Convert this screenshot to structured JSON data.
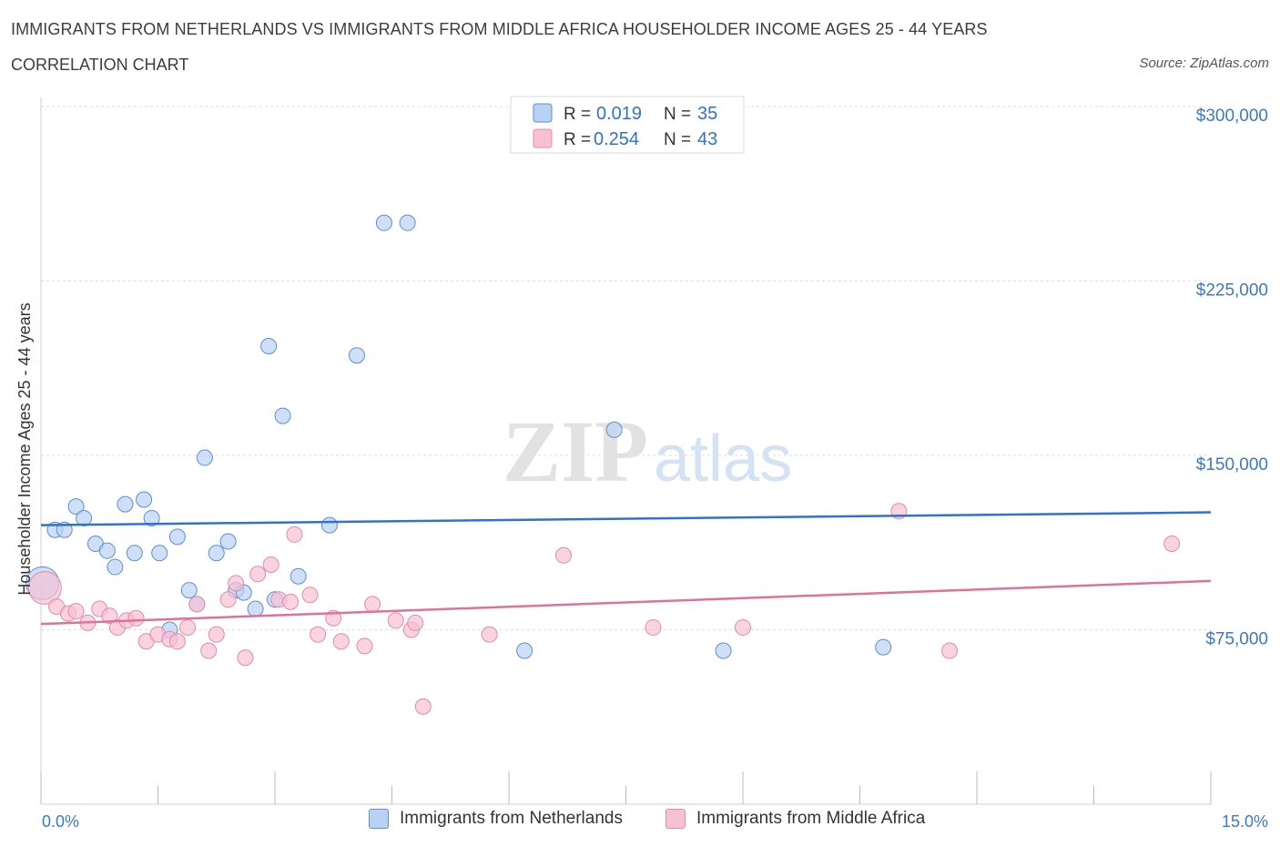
{
  "chart_data": {
    "type": "scatter",
    "title": "IMMIGRANTS FROM NETHERLANDS VS IMMIGRANTS FROM MIDDLE AFRICA HOUSEHOLDER INCOME AGES 25 - 44 YEARS",
    "subtitle": "CORRELATION CHART",
    "source": "Source: ZipAtlas.com",
    "ylabel": "Householder Income Ages 25 - 44 years",
    "xlabel": "",
    "xlim": [
      0,
      15
    ],
    "ylim": [
      0,
      300000
    ],
    "x_tick_labels": {
      "min": "0.0%",
      "max": "15.0%"
    },
    "y_ticks": [
      {
        "value": 75000,
        "label": "$75,000"
      },
      {
        "value": 150000,
        "label": "$150,000"
      },
      {
        "value": 225000,
        "label": "$225,000"
      },
      {
        "value": 300000,
        "label": "$300,000"
      }
    ],
    "watermark": {
      "part1": "ZIP",
      "part2": "atlas"
    },
    "legend": [
      {
        "r_label": "R =",
        "r_value": "0.019",
        "n_label": "N =",
        "n_value": "35"
      },
      {
        "r_label": "R =",
        "r_value": "0.254",
        "n_label": "N =",
        "n_value": "43"
      }
    ],
    "series": [
      {
        "name": "Immigrants from Netherlands",
        "color": "#5b8fd6",
        "fill": "#b9d2f3",
        "trend": {
          "x": [
            0,
            15
          ],
          "y": [
            120000,
            125500
          ],
          "color": "#2f72cf"
        },
        "points": [
          {
            "x": 0.02,
            "y": 95000,
            "big": true
          },
          {
            "x": 0.18,
            "y": 118000
          },
          {
            "x": 0.3,
            "y": 118000
          },
          {
            "x": 0.45,
            "y": 128000
          },
          {
            "x": 0.55,
            "y": 123000
          },
          {
            "x": 0.7,
            "y": 112000
          },
          {
            "x": 0.85,
            "y": 109000
          },
          {
            "x": 0.95,
            "y": 102000
          },
          {
            "x": 1.08,
            "y": 129000
          },
          {
            "x": 1.2,
            "y": 108000
          },
          {
            "x": 1.32,
            "y": 131000
          },
          {
            "x": 1.42,
            "y": 123000
          },
          {
            "x": 1.52,
            "y": 108000
          },
          {
            "x": 1.75,
            "y": 115000
          },
          {
            "x": 1.9,
            "y": 92000
          },
          {
            "x": 2.0,
            "y": 86000
          },
          {
            "x": 2.1,
            "y": 149000
          },
          {
            "x": 2.25,
            "y": 108000
          },
          {
            "x": 2.4,
            "y": 113000
          },
          {
            "x": 2.5,
            "y": 92000
          },
          {
            "x": 2.6,
            "y": 91000
          },
          {
            "x": 2.75,
            "y": 84000
          },
          {
            "x": 2.92,
            "y": 197000
          },
          {
            "x": 3.0,
            "y": 88000
          },
          {
            "x": 3.1,
            "y": 167000
          },
          {
            "x": 3.3,
            "y": 98000
          },
          {
            "x": 3.7,
            "y": 120000
          },
          {
            "x": 4.05,
            "y": 193000
          },
          {
            "x": 4.4,
            "y": 250000
          },
          {
            "x": 4.7,
            "y": 250000
          },
          {
            "x": 6.2,
            "y": 66000
          },
          {
            "x": 7.35,
            "y": 161000
          },
          {
            "x": 8.75,
            "y": 66000
          },
          {
            "x": 10.8,
            "y": 67500
          },
          {
            "x": 1.65,
            "y": 75000
          }
        ]
      },
      {
        "name": "Immigrants from Middle Africa",
        "color": "#e58aaa",
        "fill": "#f7c1d3",
        "trend": {
          "x": [
            0,
            15
          ],
          "y": [
            77500,
            96000
          ],
          "color": "#e07199"
        },
        "points": [
          {
            "x": 0.05,
            "y": 93000,
            "big": true
          },
          {
            "x": 0.2,
            "y": 85000
          },
          {
            "x": 0.35,
            "y": 82000
          },
          {
            "x": 0.45,
            "y": 83000
          },
          {
            "x": 0.6,
            "y": 78000
          },
          {
            "x": 0.75,
            "y": 84000
          },
          {
            "x": 0.88,
            "y": 81000
          },
          {
            "x": 0.98,
            "y": 76000
          },
          {
            "x": 1.1,
            "y": 79000
          },
          {
            "x": 1.22,
            "y": 80000
          },
          {
            "x": 1.35,
            "y": 70000
          },
          {
            "x": 1.5,
            "y": 73000
          },
          {
            "x": 1.65,
            "y": 71000
          },
          {
            "x": 1.75,
            "y": 70000
          },
          {
            "x": 1.88,
            "y": 76000
          },
          {
            "x": 2.0,
            "y": 86000
          },
          {
            "x": 2.15,
            "y": 66000
          },
          {
            "x": 2.25,
            "y": 73000
          },
          {
            "x": 2.4,
            "y": 88000
          },
          {
            "x": 2.5,
            "y": 95000
          },
          {
            "x": 2.62,
            "y": 63000
          },
          {
            "x": 2.78,
            "y": 99000
          },
          {
            "x": 2.95,
            "y": 103000
          },
          {
            "x": 3.05,
            "y": 88000
          },
          {
            "x": 3.2,
            "y": 87000
          },
          {
            "x": 3.25,
            "y": 116000
          },
          {
            "x": 3.45,
            "y": 90000
          },
          {
            "x": 3.55,
            "y": 73000
          },
          {
            "x": 3.75,
            "y": 80000
          },
          {
            "x": 3.85,
            "y": 70000
          },
          {
            "x": 4.15,
            "y": 68000
          },
          {
            "x": 4.25,
            "y": 86000
          },
          {
            "x": 4.55,
            "y": 79000
          },
          {
            "x": 4.75,
            "y": 75000
          },
          {
            "x": 4.8,
            "y": 78000
          },
          {
            "x": 4.9,
            "y": 42000
          },
          {
            "x": 5.75,
            "y": 73000
          },
          {
            "x": 6.7,
            "y": 107000
          },
          {
            "x": 7.85,
            "y": 76000
          },
          {
            "x": 9.0,
            "y": 76000
          },
          {
            "x": 11.0,
            "y": 126000
          },
          {
            "x": 11.65,
            "y": 66000
          },
          {
            "x": 14.5,
            "y": 112000
          }
        ]
      }
    ]
  }
}
